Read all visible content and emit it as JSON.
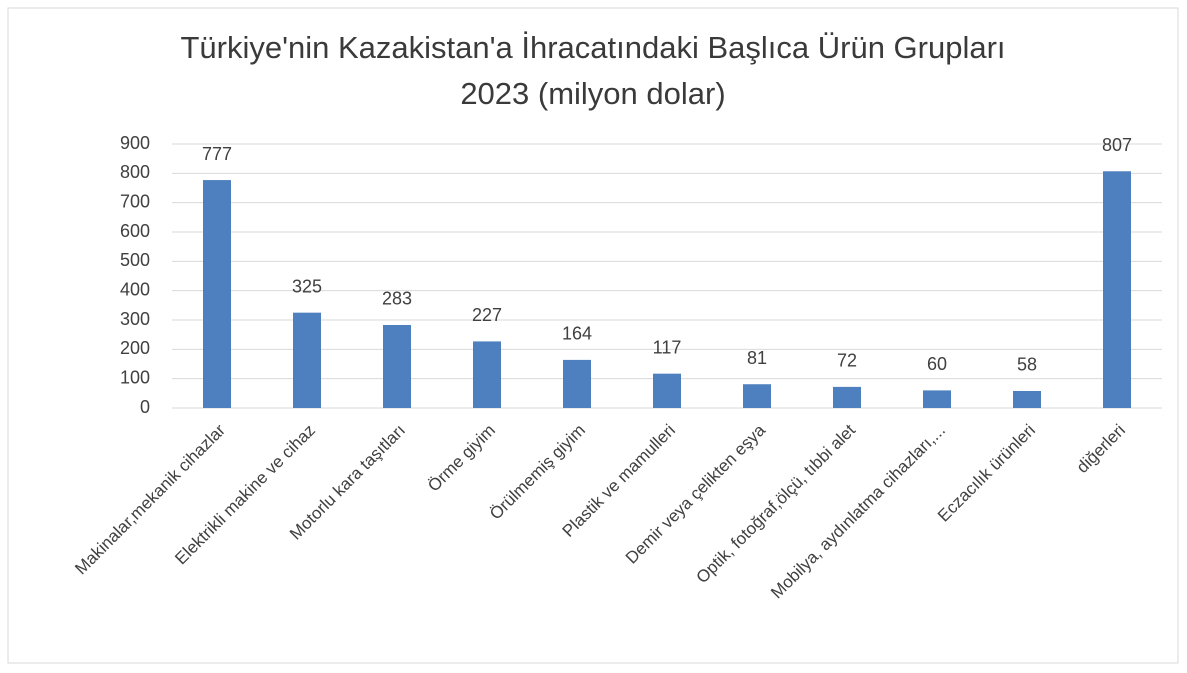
{
  "chart_data": {
    "type": "bar",
    "title": "Türkiye'nin Kazakistan'a İhracatındaki Başlıca Ürün Grupları",
    "subtitle": "2023 (milyon dolar)",
    "categories": [
      "Makinalar,mekanik cihazlar",
      "Elektrikli makine ve cihaz",
      "Motorlu kara taşıtları",
      "Örme giyim",
      "Örülmemiş giyim",
      "Plastik ve mamulleri",
      "Demir veya çelikten eşya",
      "Optik, fotoğraf,ölçü, tıbbi alet",
      "Mobilya, aydınlatma cihazları,...",
      "Eczacılık ürünleri",
      "diğerleri"
    ],
    "values": [
      777,
      325,
      283,
      227,
      164,
      117,
      81,
      72,
      60,
      58,
      807
    ],
    "color": "#4e7fbf",
    "ylim": [
      0,
      900
    ],
    "yticks": [
      0,
      100,
      200,
      300,
      400,
      500,
      600,
      700,
      800,
      900
    ],
    "grid": true
  }
}
